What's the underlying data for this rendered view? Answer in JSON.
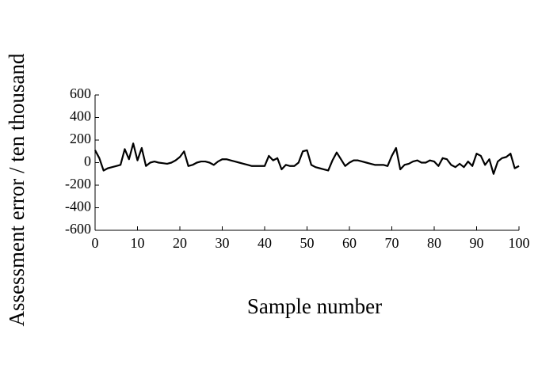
{
  "chart_data": {
    "type": "line",
    "x_label": "Sample number",
    "y_label": "Assessment error / ten thousand",
    "x": [
      0,
      1,
      2,
      3,
      4,
      5,
      6,
      7,
      8,
      9,
      10,
      11,
      12,
      13,
      14,
      15,
      16,
      17,
      18,
      19,
      20,
      21,
      22,
      23,
      24,
      25,
      26,
      27,
      28,
      29,
      30,
      31,
      32,
      33,
      34,
      35,
      36,
      37,
      38,
      39,
      40,
      41,
      42,
      43,
      44,
      45,
      46,
      47,
      48,
      49,
      50,
      51,
      52,
      53,
      54,
      55,
      56,
      57,
      58,
      59,
      60,
      61,
      62,
      63,
      64,
      65,
      66,
      67,
      68,
      69,
      70,
      71,
      72,
      73,
      74,
      75,
      76,
      77,
      78,
      79,
      80,
      81,
      82,
      83,
      84,
      85,
      86,
      87,
      88,
      89,
      90,
      91,
      92,
      93,
      94,
      95,
      96,
      97,
      98,
      99,
      100
    ],
    "series": [
      {
        "name": "Assessment error",
        "color": "#000000",
        "values": [
          110,
          40,
          -70,
          -50,
          -40,
          -30,
          -20,
          120,
          30,
          170,
          20,
          130,
          -30,
          0,
          10,
          0,
          -5,
          -10,
          0,
          20,
          50,
          100,
          -30,
          -20,
          0,
          10,
          10,
          0,
          -20,
          10,
          30,
          30,
          20,
          10,
          0,
          -10,
          -20,
          -30,
          -30,
          -30,
          -30,
          60,
          20,
          40,
          -60,
          -20,
          -30,
          -30,
          0,
          100,
          110,
          -20,
          -40,
          -50,
          -60,
          -70,
          20,
          90,
          30,
          -30,
          0,
          20,
          20,
          10,
          0,
          -10,
          -20,
          -20,
          -20,
          -30,
          60,
          130,
          -60,
          -20,
          -10,
          10,
          20,
          0,
          0,
          20,
          10,
          -30,
          40,
          30,
          -20,
          -40,
          -10,
          -40,
          10,
          -30,
          80,
          60,
          -20,
          30,
          -100,
          10,
          40,
          50,
          80,
          -50,
          -30
        ]
      }
    ],
    "xlim": [
      0,
      100
    ],
    "xticks": [
      0,
      10,
      20,
      30,
      40,
      50,
      60,
      70,
      80,
      90,
      100
    ],
    "ylim": [
      -600,
      600
    ],
    "yticks": [
      -600,
      -400,
      -200,
      0,
      200,
      400,
      600
    ],
    "grid": false
  }
}
